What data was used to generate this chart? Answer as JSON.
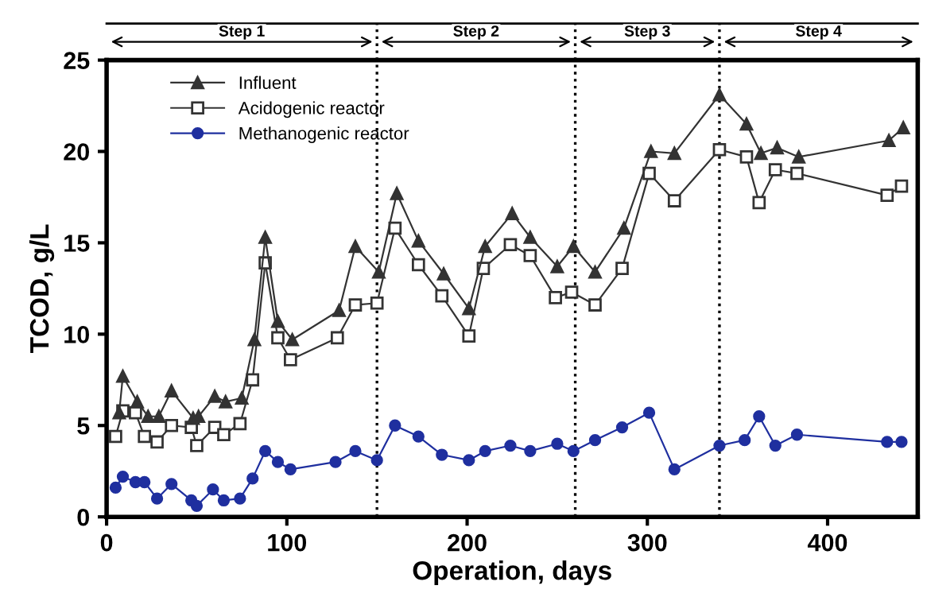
{
  "chart_data": {
    "type": "line",
    "xlabel": "Operation, days",
    "ylabel": "TCOD, g/L",
    "xlim": [
      0,
      450
    ],
    "ylim": [
      0,
      25
    ],
    "xticks": [
      0,
      100,
      200,
      300,
      400
    ],
    "yticks": [
      0,
      5,
      10,
      15,
      20,
      25
    ],
    "grid": false,
    "legend": "top left",
    "line_style": "solid",
    "series": [
      {
        "name": "Influent",
        "color": "#333333",
        "marker": "triangle",
        "x": [
          7,
          9,
          17,
          23,
          29,
          36,
          48,
          51,
          60,
          66,
          75,
          82,
          88,
          95,
          103,
          129,
          138,
          151,
          161,
          173,
          187,
          201,
          210,
          225,
          235,
          250,
          259,
          271,
          287,
          302,
          315,
          340,
          355,
          363,
          372,
          384,
          434,
          442
        ],
        "values": [
          5.7,
          7.7,
          6.3,
          5.5,
          5.5,
          6.9,
          5.4,
          5.5,
          6.6,
          6.3,
          6.5,
          9.7,
          15.3,
          10.7,
          9.7,
          11.3,
          14.8,
          13.4,
          17.7,
          15.1,
          13.3,
          11.4,
          14.8,
          16.6,
          15.3,
          13.7,
          14.8,
          13.4,
          15.8,
          20.0,
          19.9,
          23.1,
          21.5,
          19.9,
          20.2,
          19.7,
          20.6,
          21.3
        ]
      },
      {
        "name": "Acidogenic reactor",
        "color": "#333333",
        "marker": "square",
        "x": [
          5,
          9,
          16,
          21,
          28,
          36,
          47,
          50,
          60,
          65,
          74,
          81,
          88,
          95,
          102,
          128,
          138,
          150,
          160,
          173,
          186,
          201,
          209,
          224,
          235,
          249,
          258,
          271,
          286,
          301,
          315,
          340,
          355,
          362,
          371,
          383,
          433,
          441
        ],
        "values": [
          4.4,
          5.8,
          5.7,
          4.4,
          4.1,
          5.0,
          4.9,
          3.9,
          4.9,
          4.5,
          5.1,
          7.5,
          13.9,
          9.8,
          8.6,
          9.8,
          11.6,
          11.7,
          15.8,
          13.8,
          12.1,
          9.9,
          13.6,
          14.9,
          14.3,
          12.0,
          12.3,
          11.6,
          13.6,
          18.8,
          17.3,
          20.1,
          19.7,
          17.2,
          19.0,
          18.8,
          17.6,
          18.1
        ]
      },
      {
        "name": "Methanogenic reactor",
        "color": "#1f2f9f",
        "marker": "circle",
        "x": [
          5,
          9,
          16,
          21,
          28,
          36,
          47,
          50,
          59,
          65,
          74,
          81,
          88,
          95,
          102,
          127,
          138,
          150,
          160,
          173,
          186,
          201,
          210,
          224,
          235,
          250,
          259,
          271,
          286,
          301,
          315,
          340,
          354,
          362,
          371,
          383,
          433,
          441
        ],
        "values": [
          1.6,
          2.2,
          1.9,
          1.9,
          1.0,
          1.8,
          0.9,
          0.6,
          1.5,
          0.9,
          1.0,
          2.1,
          3.6,
          3.0,
          2.6,
          3.0,
          3.6,
          3.1,
          5.0,
          4.4,
          3.4,
          3.1,
          3.6,
          3.9,
          3.6,
          4.0,
          3.6,
          4.2,
          4.9,
          5.7,
          2.6,
          3.9,
          4.2,
          5.5,
          3.9,
          4.5,
          4.1,
          4.1
        ]
      }
    ],
    "ref_lines": [
      {
        "axis": "x",
        "value": 150,
        "line_style": "dotted",
        "color": "#000000"
      },
      {
        "axis": "x",
        "value": 260,
        "line_style": "dotted",
        "color": "#000000"
      },
      {
        "axis": "x",
        "value": 340,
        "line_style": "dotted",
        "color": "#000000"
      }
    ],
    "annotations": [
      "Step 1",
      "Step 2",
      "Step 3",
      "Step 4"
    ]
  }
}
